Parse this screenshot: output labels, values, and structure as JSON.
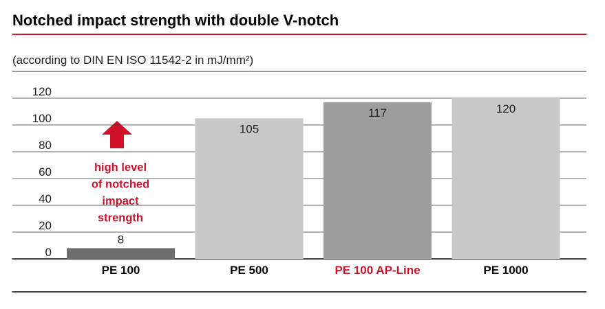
{
  "chart_data": {
    "type": "bar",
    "title": "Notched impact strength with double V-notch",
    "subtitle": "(according to DIN EN ISO 11542-2 in mJ/mm²)",
    "categories": [
      "PE 100",
      "PE 500",
      "PE 100 AP-Line",
      "PE 1000"
    ],
    "values": [
      8,
      105,
      117,
      120
    ],
    "colors": [
      "#6e6e6e",
      "#c8c8c8",
      "#9d9d9d",
      "#c8c8c8"
    ],
    "label_colors": [
      "#000000",
      "#000000",
      "#d0112b",
      "#000000"
    ],
    "ylim": [
      0,
      140
    ],
    "yticks": [
      0,
      20,
      40,
      60,
      80,
      100,
      120
    ],
    "grid": true,
    "annotation": [
      "high level",
      "of notched",
      "impact",
      "strength"
    ],
    "annotation_color": "#d0112b"
  }
}
